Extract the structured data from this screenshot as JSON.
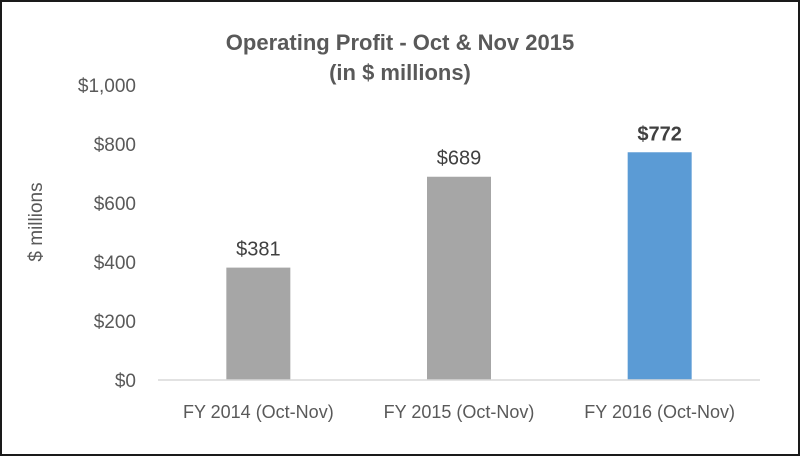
{
  "chart_data": {
    "type": "bar",
    "title_line1": "Operating Profit - Oct & Nov 2015",
    "title_line2": "(in $ millions)",
    "xlabel": "",
    "ylabel": "$ millions",
    "categories": [
      "FY 2014 (Oct-Nov)",
      "FY 2015 (Oct-Nov)",
      "FY 2016 (Oct-Nov)"
    ],
    "values": [
      381,
      689,
      772
    ],
    "data_labels": [
      "$381",
      "$689",
      "$772"
    ],
    "ylim": [
      0,
      1000
    ],
    "yticks": [
      0,
      200,
      400,
      600,
      800,
      1000
    ],
    "ytick_labels": [
      "$0",
      "$200",
      "$400",
      "$600",
      "$800",
      "$1,000"
    ],
    "bar_colors": [
      "#a6a6a6",
      "#a6a6a6",
      "#5b9bd5"
    ],
    "highlighted_index": 2,
    "grid": false,
    "legend": "none"
  }
}
